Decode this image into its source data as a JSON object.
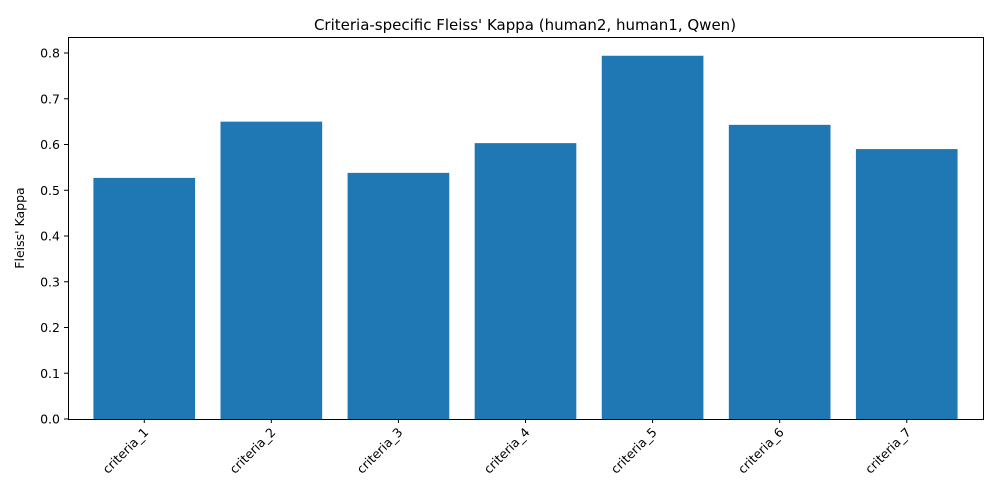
{
  "chart_data": {
    "type": "bar",
    "title": "Criteria-specific Fleiss' Kappa (human2, human1, Qwen)",
    "xlabel": "",
    "ylabel": "Fleiss' Kappa",
    "categories": [
      "criteria_1",
      "criteria_2",
      "criteria_3",
      "criteria_4",
      "criteria_5",
      "criteria_6",
      "criteria_7"
    ],
    "values": [
      0.527,
      0.65,
      0.538,
      0.603,
      0.794,
      0.643,
      0.59
    ],
    "ylim": [
      0,
      0.835
    ],
    "yticks": [
      "0.0",
      "0.1",
      "0.2",
      "0.3",
      "0.4",
      "0.5",
      "0.6",
      "0.7",
      "0.8"
    ],
    "grid": false,
    "bar_color": "#1f77b4"
  }
}
